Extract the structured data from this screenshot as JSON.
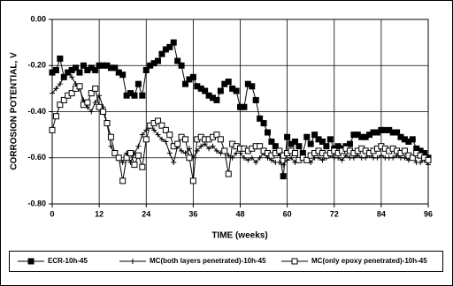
{
  "chart_data": {
    "type": "line",
    "x_label": "TIME (weeks)",
    "y_label": "CORROSION POTENTIAL, V",
    "xlim": [
      0,
      96
    ],
    "xticks": [
      0,
      12,
      24,
      36,
      48,
      60,
      72,
      84,
      96
    ],
    "ylim": [
      -0.8,
      0
    ],
    "yticks": [
      {
        "value": 0,
        "label": "0.00"
      },
      {
        "value": -0.2,
        "label": "-0.20"
      },
      {
        "value": -0.4,
        "label": "-0.40"
      },
      {
        "value": -0.6,
        "label": "-0.60"
      },
      {
        "value": -0.8,
        "label": "-0.80"
      }
    ],
    "grid": true,
    "legend": "bottom",
    "x": [
      0,
      1,
      2,
      3,
      4,
      5,
      6,
      7,
      8,
      9,
      10,
      11,
      12,
      13,
      14,
      15,
      16,
      17,
      18,
      19,
      20,
      21,
      22,
      23,
      24,
      25,
      26,
      27,
      28,
      29,
      30,
      31,
      32,
      33,
      34,
      35,
      36,
      37,
      38,
      39,
      40,
      41,
      42,
      43,
      44,
      45,
      46,
      47,
      48,
      49,
      50,
      51,
      52,
      53,
      54,
      55,
      56,
      57,
      58,
      59,
      60,
      61,
      62,
      63,
      64,
      65,
      66,
      67,
      68,
      69,
      70,
      71,
      72,
      73,
      74,
      75,
      76,
      77,
      78,
      79,
      80,
      81,
      82,
      83,
      84,
      85,
      86,
      87,
      88,
      89,
      90,
      91,
      92,
      93,
      94,
      95,
      96
    ],
    "series": [
      {
        "name": "ECR-10h-45",
        "color": "#000000",
        "marker": "filled-square",
        "values": [
          -0.23,
          -0.22,
          -0.17,
          -0.25,
          -0.23,
          -0.22,
          -0.21,
          -0.23,
          -0.2,
          -0.22,
          -0.21,
          -0.22,
          -0.2,
          -0.2,
          -0.2,
          -0.21,
          -0.21,
          -0.23,
          -0.24,
          -0.33,
          -0.32,
          -0.33,
          -0.28,
          -0.33,
          -0.22,
          -0.2,
          -0.19,
          -0.18,
          -0.15,
          -0.13,
          -0.12,
          -0.1,
          -0.18,
          -0.2,
          -0.28,
          -0.26,
          -0.25,
          -0.29,
          -0.3,
          -0.31,
          -0.33,
          -0.34,
          -0.35,
          -0.31,
          -0.28,
          -0.27,
          -0.3,
          -0.31,
          -0.38,
          -0.38,
          -0.28,
          -0.29,
          -0.35,
          -0.43,
          -0.45,
          -0.49,
          -0.53,
          -0.55,
          -0.58,
          -0.68,
          -0.51,
          -0.54,
          -0.53,
          -0.55,
          -0.58,
          -0.51,
          -0.54,
          -0.5,
          -0.52,
          -0.53,
          -0.55,
          -0.52,
          -0.56,
          -0.55,
          -0.56,
          -0.55,
          -0.54,
          -0.5,
          -0.5,
          -0.51,
          -0.51,
          -0.5,
          -0.49,
          -0.49,
          -0.48,
          -0.48,
          -0.48,
          -0.49,
          -0.49,
          -0.51,
          -0.52,
          -0.53,
          -0.52,
          -0.56,
          -0.57,
          -0.58,
          -0.6
        ]
      },
      {
        "name": "MC(both layers penetrated)-10h-45",
        "color": "#000000",
        "marker": "plus",
        "values": [
          -0.32,
          -0.3,
          -0.28,
          -0.25,
          -0.23,
          -0.25,
          -0.28,
          -0.3,
          -0.35,
          -0.38,
          -0.4,
          -0.36,
          -0.33,
          -0.38,
          -0.45,
          -0.55,
          -0.58,
          -0.6,
          -0.62,
          -0.58,
          -0.62,
          -0.58,
          -0.55,
          -0.5,
          -0.48,
          -0.46,
          -0.48,
          -0.5,
          -0.52,
          -0.53,
          -0.58,
          -0.62,
          -0.55,
          -0.57,
          -0.58,
          -0.56,
          -0.6,
          -0.57,
          -0.55,
          -0.54,
          -0.56,
          -0.55,
          -0.57,
          -0.58,
          -0.57,
          -0.59,
          -0.6,
          -0.58,
          -0.58,
          -0.6,
          -0.61,
          -0.6,
          -0.62,
          -0.6,
          -0.58,
          -0.6,
          -0.61,
          -0.62,
          -0.62,
          -0.63,
          -0.61,
          -0.6,
          -0.62,
          -0.61,
          -0.6,
          -0.61,
          -0.62,
          -0.6,
          -0.6,
          -0.61,
          -0.6,
          -0.59,
          -0.6,
          -0.6,
          -0.61,
          -0.59,
          -0.6,
          -0.6,
          -0.59,
          -0.6,
          -0.6,
          -0.59,
          -0.6,
          -0.6,
          -0.59,
          -0.6,
          -0.6,
          -0.6,
          -0.59,
          -0.6,
          -0.6,
          -0.61,
          -0.6,
          -0.62,
          -0.62,
          -0.61,
          -0.63
        ]
      },
      {
        "name": "MC(only epoxy penetrated)-10h-45",
        "color": "#000000",
        "marker": "open-square",
        "values": [
          -0.48,
          -0.42,
          -0.37,
          -0.35,
          -0.33,
          -0.32,
          -0.3,
          -0.29,
          -0.37,
          -0.36,
          -0.32,
          -0.3,
          -0.38,
          -0.4,
          -0.45,
          -0.51,
          -0.58,
          -0.6,
          -0.7,
          -0.6,
          -0.58,
          -0.63,
          -0.59,
          -0.64,
          -0.52,
          -0.46,
          -0.45,
          -0.44,
          -0.46,
          -0.48,
          -0.5,
          -0.55,
          -0.54,
          -0.51,
          -0.52,
          -0.6,
          -0.7,
          -0.52,
          -0.51,
          -0.52,
          -0.52,
          -0.51,
          -0.5,
          -0.52,
          -0.57,
          -0.67,
          -0.54,
          -0.55,
          -0.56,
          -0.56,
          -0.57,
          -0.56,
          -0.55,
          -0.55,
          -0.57,
          -0.58,
          -0.59,
          -0.58,
          -0.57,
          -0.59,
          -0.58,
          -0.57,
          -0.58,
          -0.61,
          -0.6,
          -0.61,
          -0.59,
          -0.58,
          -0.57,
          -0.58,
          -0.59,
          -0.58,
          -0.57,
          -0.58,
          -0.57,
          -0.56,
          -0.57,
          -0.58,
          -0.57,
          -0.56,
          -0.57,
          -0.58,
          -0.57,
          -0.56,
          -0.55,
          -0.56,
          -0.57,
          -0.56,
          -0.57,
          -0.58,
          -0.57,
          -0.59,
          -0.6,
          -0.58,
          -0.59,
          -0.6,
          -0.61
        ]
      }
    ]
  }
}
